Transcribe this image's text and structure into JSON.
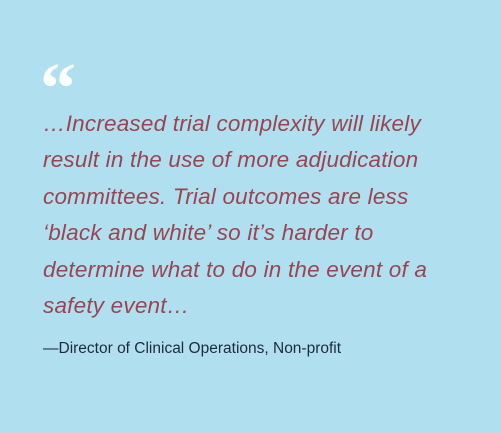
{
  "quote": {
    "mark": "“",
    "lines": [
      "…Increased trial complexity will likely",
      "result in the use of more adjudication",
      "committees. Trial outcomes are less",
      "‘black and white’ so it’s harder to",
      "determine what to do in the event of a",
      "safety event…"
    ],
    "attribution": "—Director of Clinical Operations, Non-profit"
  }
}
